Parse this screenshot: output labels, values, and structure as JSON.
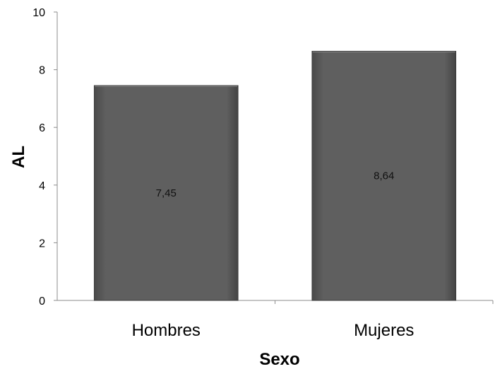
{
  "chart_data": {
    "type": "bar",
    "categories": [
      "Hombres",
      "Mujeres"
    ],
    "values": [
      7.45,
      8.64
    ],
    "data_labels": [
      "7,45",
      "8,64"
    ],
    "xlabel": "Sexo",
    "ylabel": "AL",
    "ylim": [
      0,
      10
    ],
    "yticks": [
      0,
      2,
      4,
      6,
      8,
      10
    ],
    "ytick_labels": [
      "0",
      "2",
      "4",
      "6",
      "8",
      "10"
    ],
    "bar_color": "#5e5e5e",
    "grid": false,
    "legend": "none"
  }
}
